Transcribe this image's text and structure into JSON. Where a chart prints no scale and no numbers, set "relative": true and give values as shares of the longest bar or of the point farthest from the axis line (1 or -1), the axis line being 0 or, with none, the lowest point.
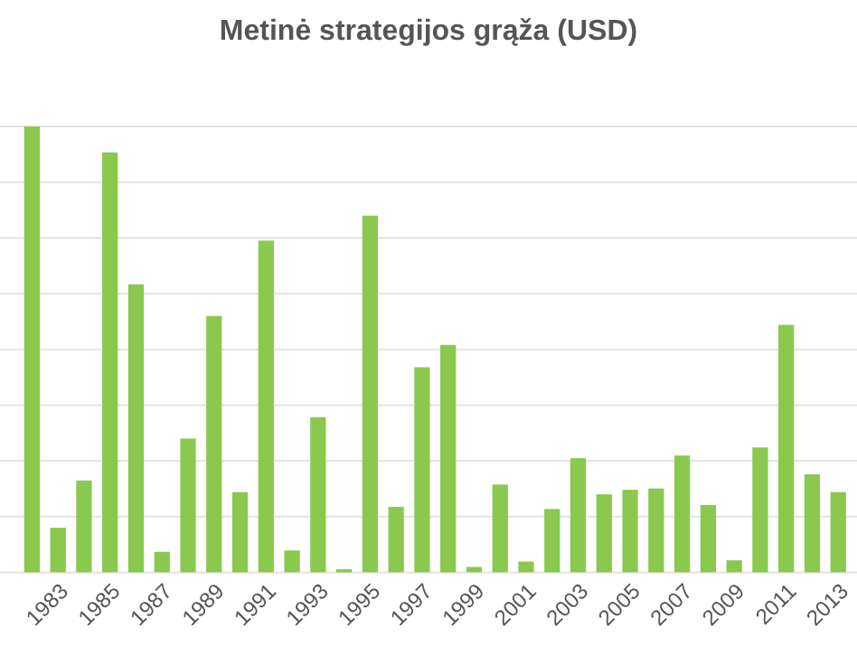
{
  "chart_data": {
    "type": "bar",
    "title": "Metinė strategijos grąža (USD)",
    "relative": true,
    "grid": true,
    "color": "#8bc94e",
    "categories": [
      null,
      "1983",
      null,
      "1985",
      null,
      "1987",
      null,
      "1989",
      null,
      "1991",
      null,
      "1993",
      null,
      "1995",
      null,
      "1997",
      null,
      "1999",
      null,
      "2001",
      null,
      "2003",
      null,
      "2005",
      null,
      "2007",
      null,
      "2009",
      null,
      "2011",
      null,
      "2013"
    ],
    "values": [
      1.0,
      0.1,
      0.206,
      0.942,
      0.646,
      0.046,
      0.3,
      0.575,
      0.18,
      0.744,
      0.049,
      0.348,
      0.007,
      0.8,
      0.147,
      0.46,
      0.51,
      0.012,
      0.197,
      0.024,
      0.142,
      0.256,
      0.175,
      0.185,
      0.188,
      0.262,
      0.151,
      0.027,
      0.28,
      0.555,
      0.22,
      0.18
    ]
  }
}
